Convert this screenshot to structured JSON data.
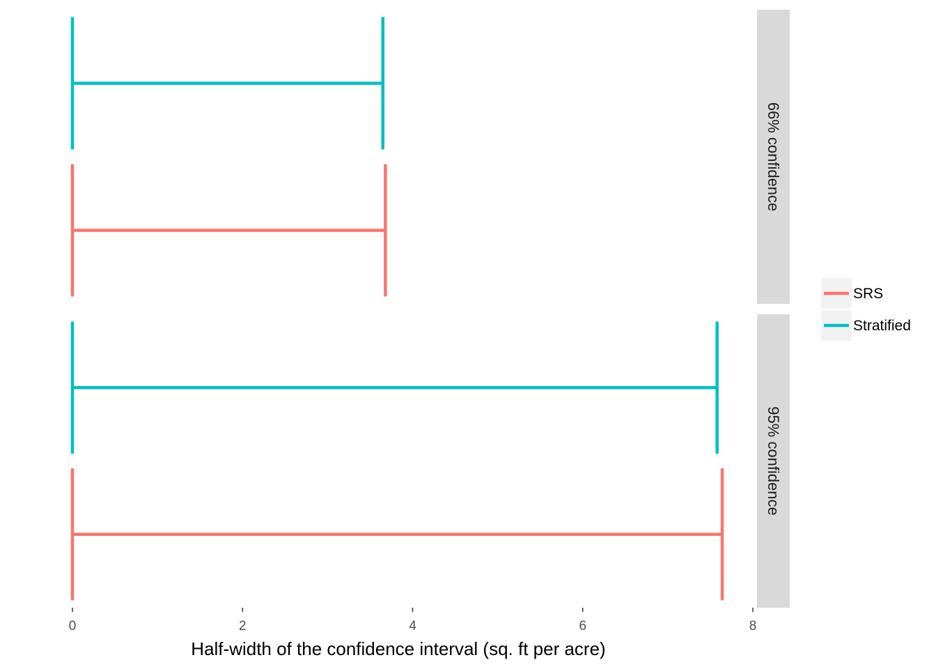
{
  "chart_data": {
    "type": "errorbar",
    "xlabel": "Half-width of the confidence interval (sq. ft per acre)",
    "ylabel": "",
    "xlim": [
      0,
      8
    ],
    "xticks": [
      "0",
      "2",
      "4",
      "6",
      "8"
    ],
    "panels": [
      {
        "strip": "66% confidence",
        "bars": [
          {
            "series": "Stratified",
            "lower": 0,
            "upper": 3.65
          },
          {
            "series": "SRS",
            "lower": 0,
            "upper": 3.68
          }
        ]
      },
      {
        "strip": "95% confidence",
        "bars": [
          {
            "series": "Stratified",
            "lower": 0,
            "upper": 7.58
          },
          {
            "series": "SRS",
            "lower": 0,
            "upper": 7.64
          }
        ]
      }
    ],
    "legend": {
      "position": "right",
      "entries": [
        {
          "label": "SRS",
          "color": "#F8766D"
        },
        {
          "label": "Stratified",
          "color": "#00BFC4"
        }
      ]
    },
    "grid": false
  }
}
